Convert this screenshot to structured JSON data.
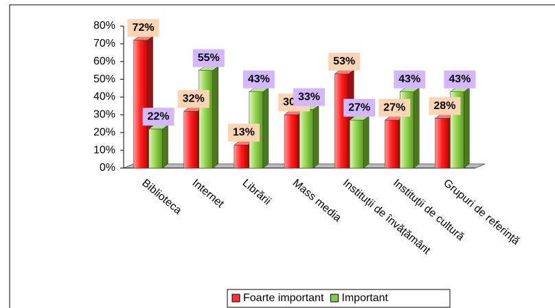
{
  "chart_data": {
    "type": "bar3d",
    "categories": [
      "Biblioteca",
      "Internet",
      "Librării",
      "Mass media",
      "Instituții de învățământ",
      "Instituții de cultură",
      "Grupuri de referință"
    ],
    "series": [
      {
        "name": "Foarte important",
        "color": "#ff3333",
        "values": [
          72,
          32,
          13,
          30,
          53,
          27,
          28
        ],
        "value_labels": [
          "72%",
          "32%",
          "13%",
          "30%",
          "53%",
          "27%",
          "28%"
        ]
      },
      {
        "name": "Important",
        "color": "#88cc44",
        "values": [
          22,
          55,
          43,
          33,
          27,
          43,
          43
        ],
        "value_labels": [
          "22%",
          "55%",
          "43%",
          "33%",
          "27%",
          "43%",
          "43%"
        ]
      }
    ],
    "ylim": [
      0,
      80
    ],
    "yticks": [
      {
        "value": 0,
        "label": "0%"
      },
      {
        "value": 10,
        "label": "10%"
      },
      {
        "value": 20,
        "label": "20%"
      },
      {
        "value": 30,
        "label": "30%"
      },
      {
        "value": 40,
        "label": "40%"
      },
      {
        "value": 50,
        "label": "50%"
      },
      {
        "value": 60,
        "label": "60%"
      },
      {
        "value": 70,
        "label": "70%"
      },
      {
        "value": 80,
        "label": "80%"
      }
    ],
    "grid": false,
    "legend": "bottom"
  }
}
